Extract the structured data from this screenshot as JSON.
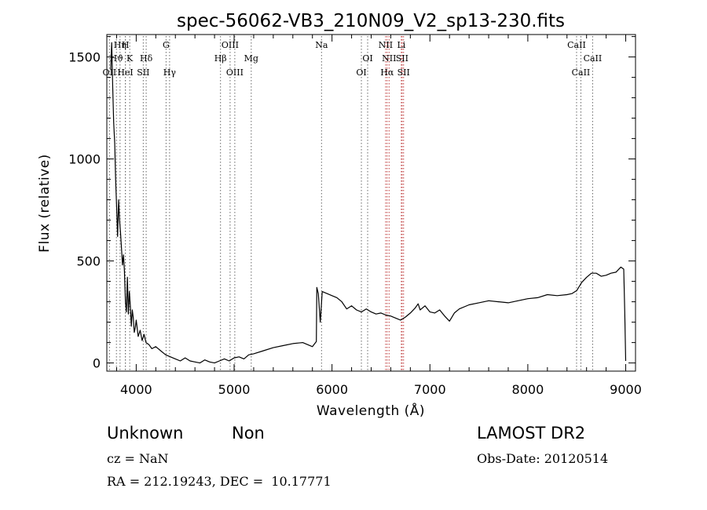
{
  "chart_data": {
    "type": "line",
    "title": "spec-56062-VB3_210N09_V2_sp13-230.fits",
    "xlabel": "Wavelength (Å)",
    "ylabel": "Flux (relative)",
    "xlim": [
      3700,
      9100
    ],
    "ylim": [
      -40,
      1610
    ],
    "x_ticks": [
      4000,
      5000,
      6000,
      7000,
      8000,
      9000
    ],
    "y_ticks": [
      0,
      500,
      1000,
      1500
    ],
    "grid": false,
    "line_color": "#000000",
    "line_marker_color": "#666666",
    "series": [
      {
        "x": [
          3740,
          3750,
          3760,
          3770,
          3780,
          3790,
          3800,
          3810,
          3820,
          3830,
          3840,
          3850,
          3860,
          3870,
          3880,
          3890,
          3900,
          3910,
          3920,
          3930,
          3940,
          3950,
          3960,
          3970,
          3980,
          3990,
          4000,
          4020,
          4040,
          4060,
          4080,
          4100,
          4130,
          4160,
          4200,
          4250,
          4300,
          4350,
          4400,
          4450,
          4500,
          4550,
          4600,
          4650,
          4700,
          4750,
          4800,
          4850,
          4900,
          4950,
          5000,
          5050,
          5100,
          5150,
          5200,
          5300,
          5400,
          5500,
          5600,
          5700,
          5800,
          5840,
          5845,
          5860,
          5880,
          5900,
          5950,
          6000,
          6050,
          6100,
          6150,
          6200,
          6250,
          6300,
          6350,
          6400,
          6450,
          6500,
          6550,
          6600,
          6650,
          6700,
          6750,
          6800,
          6850,
          6880,
          6900,
          6950,
          7000,
          7050,
          7100,
          7150,
          7200,
          7250,
          7300,
          7400,
          7500,
          7600,
          7700,
          7800,
          7900,
          8000,
          8100,
          8200,
          8300,
          8400,
          8450,
          8500,
          8550,
          8600,
          8650,
          8700,
          8750,
          8800,
          8850,
          8900,
          8950,
          8980,
          8990,
          9000
        ],
        "y": [
          1440,
          1570,
          1350,
          1180,
          1080,
          900,
          760,
          620,
          800,
          700,
          640,
          560,
          480,
          530,
          450,
          300,
          250,
          420,
          240,
          350,
          280,
          180,
          260,
          220,
          150,
          170,
          210,
          130,
          160,
          110,
          140,
          100,
          90,
          70,
          80,
          60,
          40,
          30,
          20,
          10,
          25,
          10,
          5,
          0,
          15,
          5,
          0,
          10,
          20,
          10,
          25,
          30,
          20,
          40,
          45,
          60,
          75,
          85,
          95,
          100,
          80,
          105,
          370,
          340,
          200,
          350,
          340,
          330,
          320,
          300,
          265,
          280,
          260,
          250,
          265,
          250,
          240,
          245,
          235,
          230,
          220,
          210,
          225,
          245,
          270,
          290,
          260,
          280,
          250,
          245,
          260,
          230,
          205,
          245,
          265,
          285,
          295,
          305,
          300,
          295,
          305,
          315,
          320,
          335,
          330,
          335,
          340,
          355,
          395,
          420,
          440,
          440,
          425,
          430,
          440,
          445,
          470,
          460,
          250,
          10
        ]
      }
    ],
    "lines": [
      {
        "label": "Hη",
        "wl": 3835,
        "row": 0
      },
      {
        "label": "H",
        "wl": 3890,
        "row": 0
      },
      {
        "label": "Hϑ",
        "wl": 3798,
        "row": 1
      },
      {
        "label": "K",
        "wl": 3934,
        "row": 1
      },
      {
        "label": "Hδ",
        "wl": 4102,
        "row": 1
      },
      {
        "label": "OII",
        "wl": 3727,
        "row": 2
      },
      {
        "label": "HeI",
        "wl": 3889,
        "row": 2
      },
      {
        "label": "SII",
        "wl": 4072,
        "row": 2
      },
      {
        "label": "G",
        "wl": 4305,
        "row": 0
      },
      {
        "label": "Hγ",
        "wl": 4341,
        "row": 2
      },
      {
        "label": "OIII",
        "wl": 4959,
        "row": 0
      },
      {
        "label": "Hβ",
        "wl": 4861,
        "row": 1
      },
      {
        "label": "Mg",
        "wl": 5175,
        "row": 1
      },
      {
        "label": "OIII",
        "wl": 5007,
        "row": 2
      },
      {
        "label": "Na",
        "wl": 5893,
        "row": 0
      },
      {
        "label": "OI",
        "wl": 6364,
        "row": 1
      },
      {
        "label": "OI",
        "wl": 6300,
        "row": 2
      },
      {
        "label": "NII",
        "wl": 6548,
        "row": 0
      },
      {
        "label": "Li",
        "wl": 6708,
        "row": 0
      },
      {
        "label": "NII",
        "wl": 6583,
        "row": 1
      },
      {
        "label": "SII",
        "wl": 6716,
        "row": 1
      },
      {
        "label": "Hα",
        "wl": 6563,
        "row": 2
      },
      {
        "label": "SII",
        "wl": 6731,
        "row": 2
      },
      {
        "label": "CaII",
        "wl": 8498,
        "row": 0
      },
      {
        "label": "CaII",
        "wl": 8662,
        "row": 1
      },
      {
        "label": "CaII",
        "wl": 8542,
        "row": 2
      }
    ]
  },
  "info": {
    "class": "Unknown",
    "subclass": "Non",
    "survey": "LAMOST DR2",
    "cz": "cz = NaN",
    "obs_date": "Obs-Date: 20120514",
    "coords": "RA = 212.19243, DEC =  10.17771"
  }
}
